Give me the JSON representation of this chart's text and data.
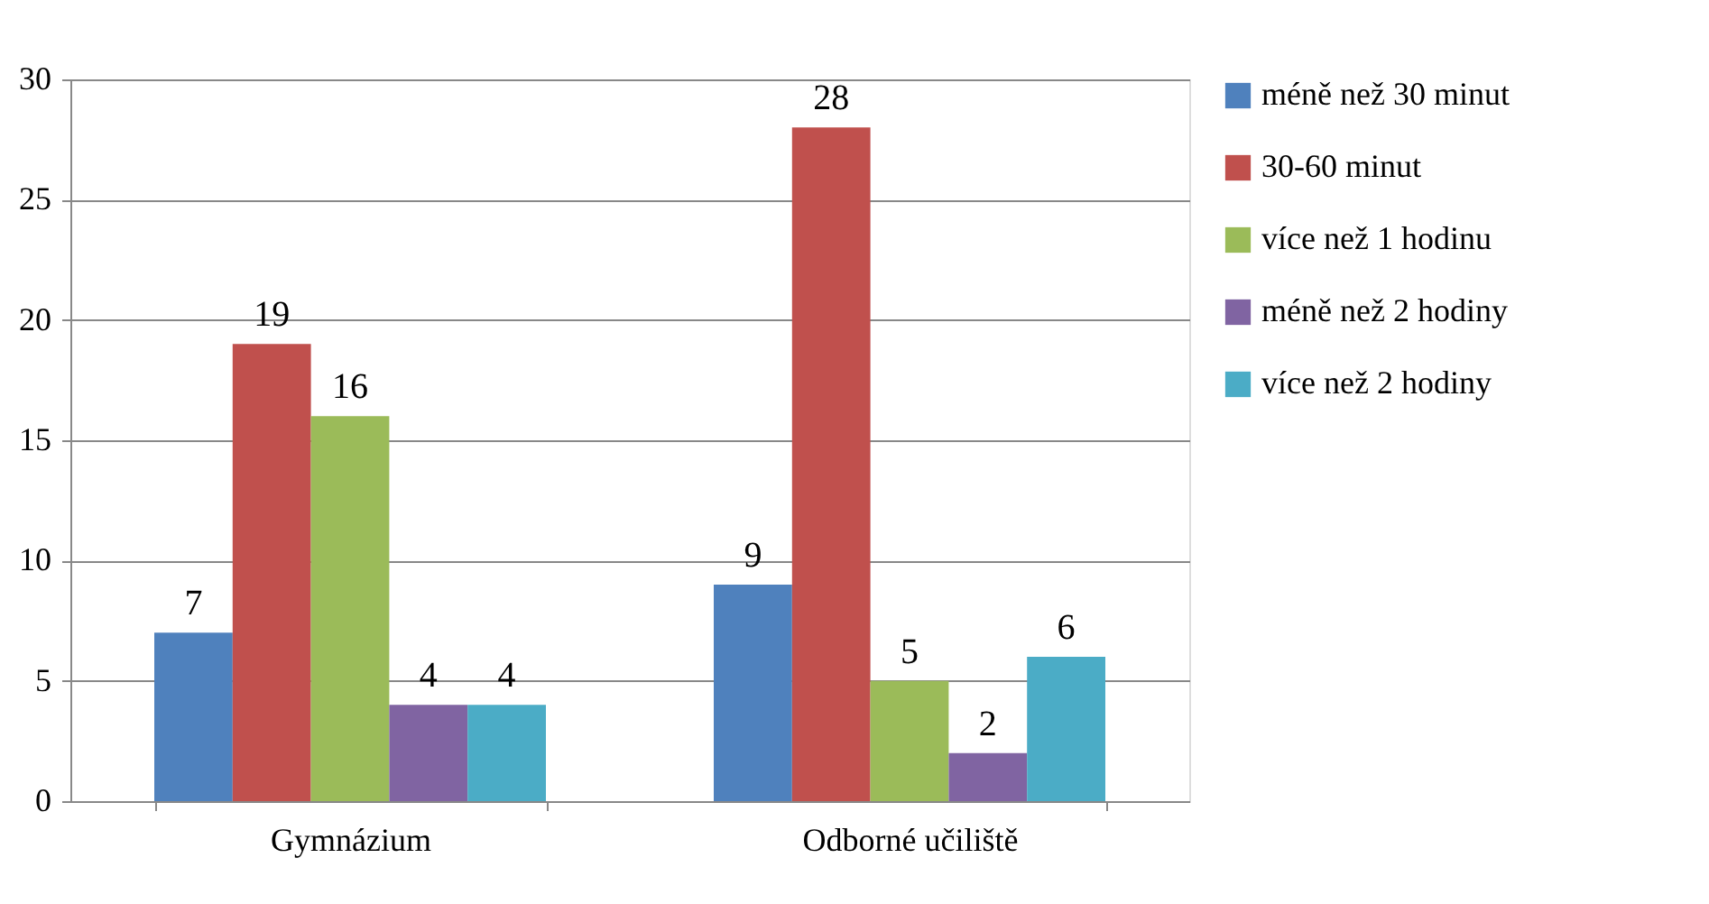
{
  "chart_data": {
    "type": "bar",
    "categories": [
      "Gymnázium",
      "Odborné učiliště"
    ],
    "series": [
      {
        "name": "méně než 30 minut",
        "color": "#4f81bd",
        "values": [
          7,
          9
        ]
      },
      {
        "name": "30-60 minut",
        "color": "#c0504d",
        "values": [
          19,
          28
        ]
      },
      {
        "name": "více než 1 hodinu",
        "color": "#9bbb59",
        "values": [
          16,
          5
        ]
      },
      {
        "name": "méně než 2 hodiny",
        "color": "#8064a2",
        "values": [
          4,
          2
        ]
      },
      {
        "name": "více než 2 hodiny",
        "color": "#4bacc6",
        "values": [
          4,
          6
        ]
      }
    ],
    "ylim": [
      0,
      30
    ],
    "yticks": [
      0,
      5,
      10,
      15,
      20,
      25,
      30
    ],
    "grid": "y",
    "legend": "right",
    "data_labels": true
  }
}
